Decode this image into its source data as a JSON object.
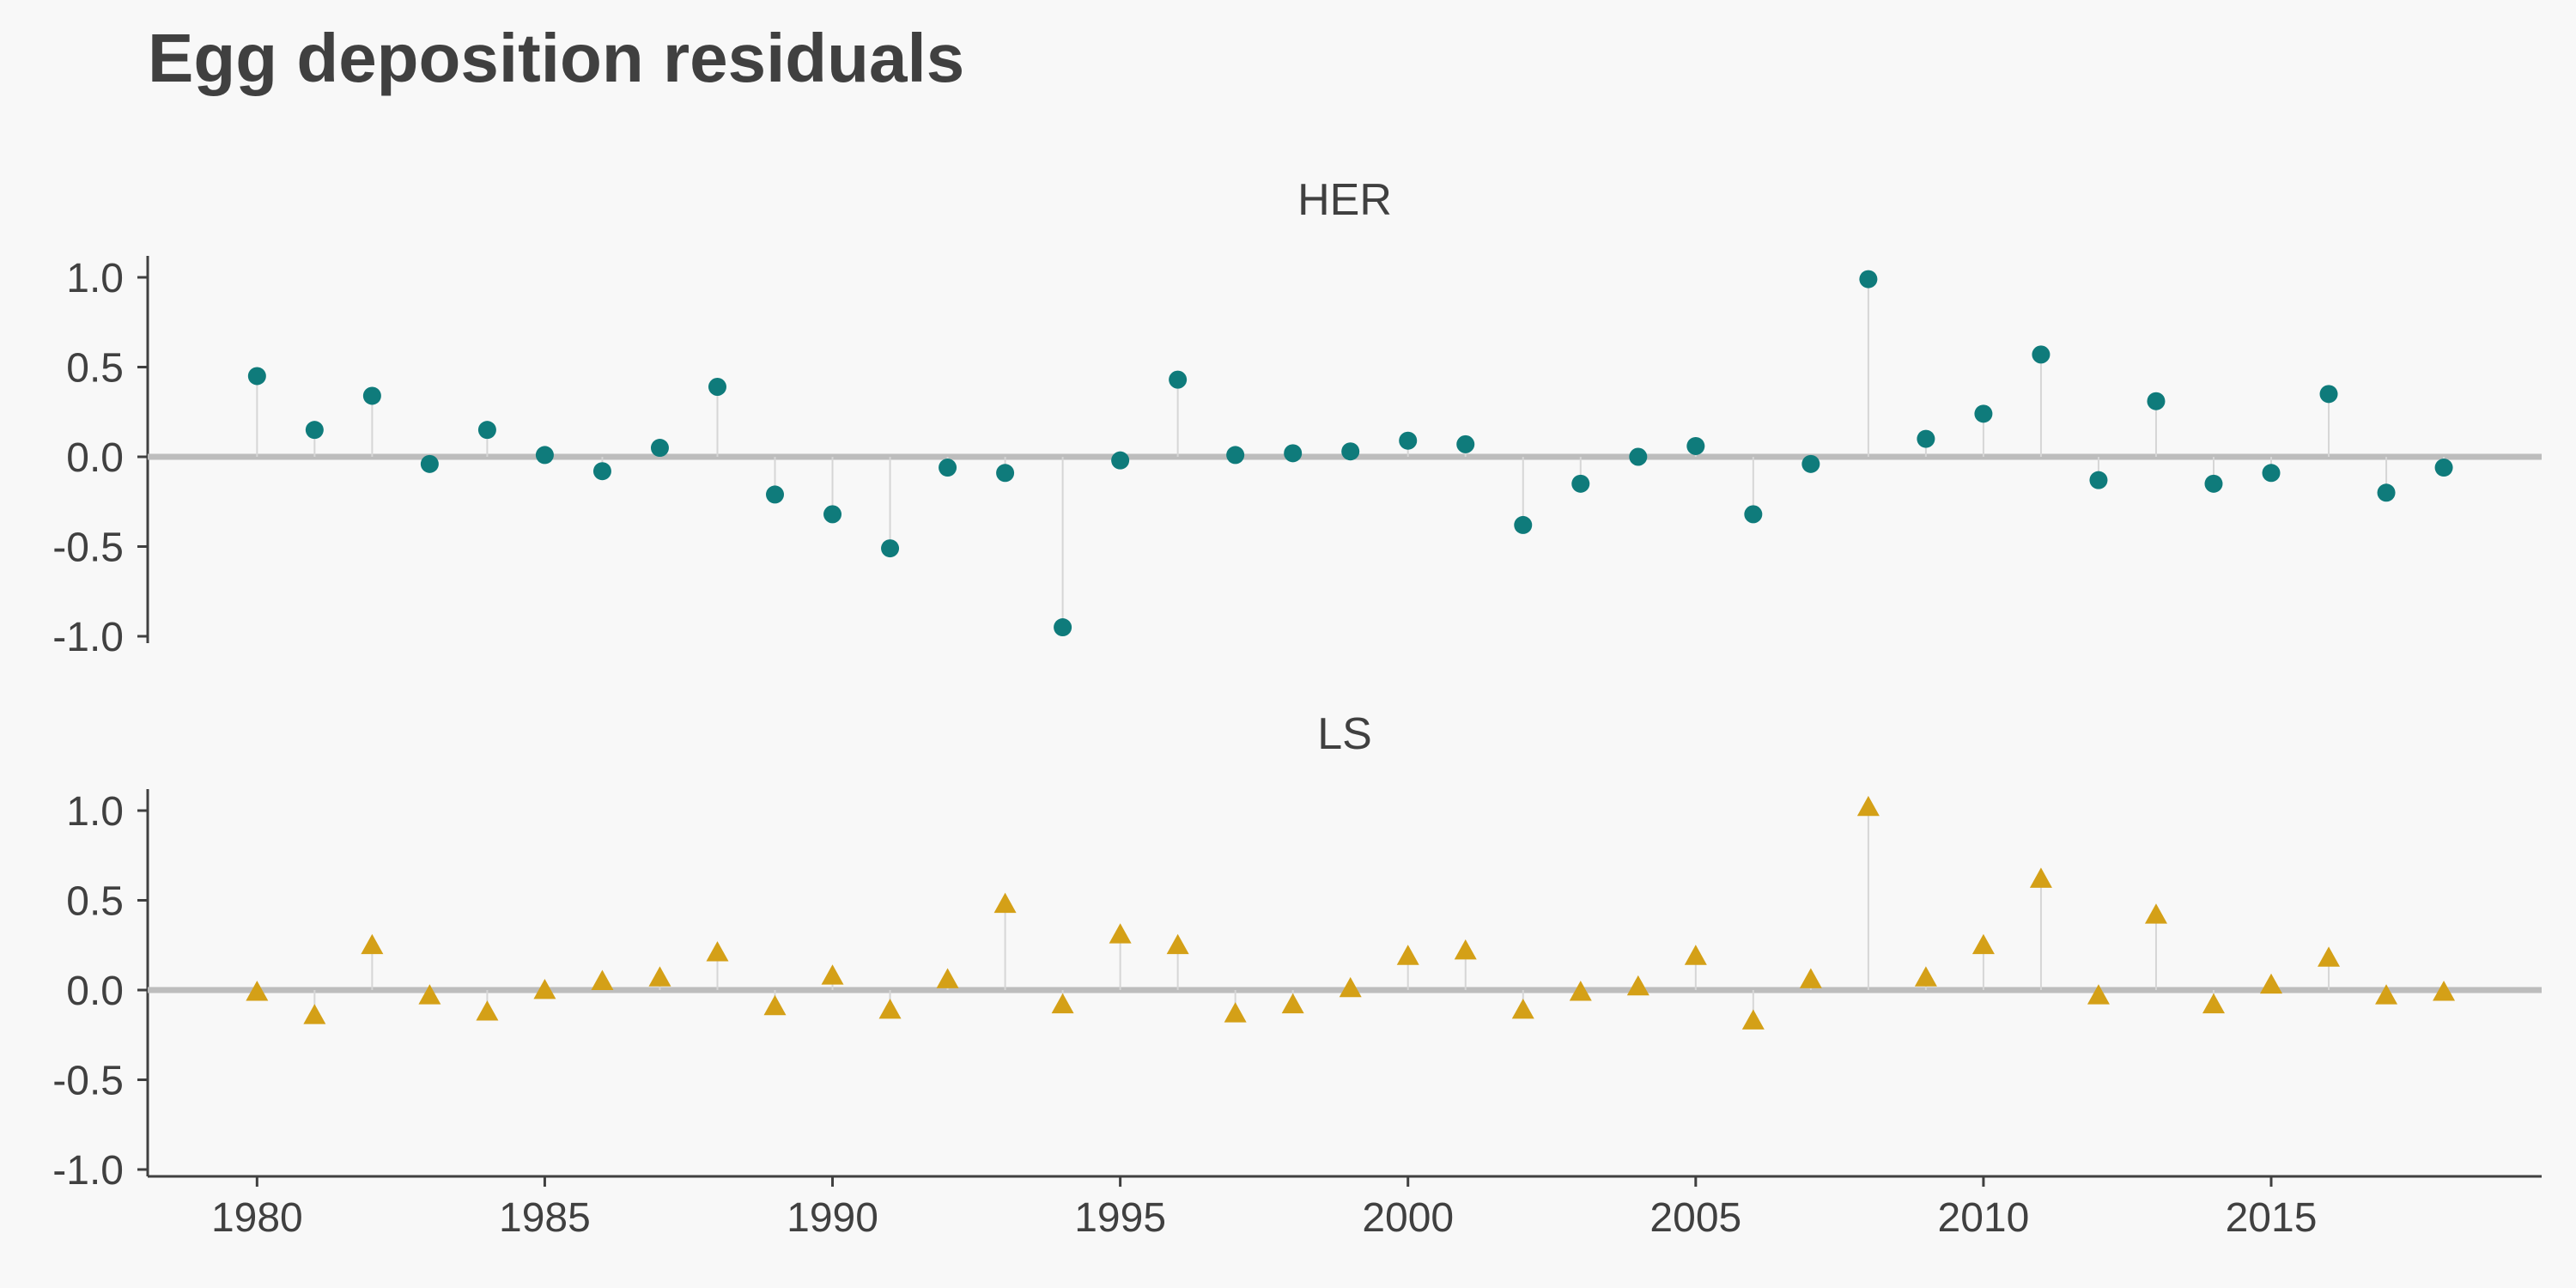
{
  "title": "Egg deposition residuals",
  "chart_data": {
    "type": "scatter",
    "title": "Egg deposition residuals",
    "xlabel": "",
    "ylabel": "",
    "xlim": [
      1978.1,
      2019.7
    ],
    "ylim": [
      -1.0,
      1.0
    ],
    "x_ticks": [
      1980,
      1985,
      1990,
      1995,
      2000,
      2005,
      2010,
      2015
    ],
    "y_ticks": [
      1.0,
      0.5,
      0.0,
      -0.5,
      -1.0
    ],
    "y_tick_labels": [
      "1.0",
      "0.5",
      "0.0",
      "-0.5",
      "-1.0"
    ],
    "grid": false,
    "zero_line": true,
    "colors": {
      "HER": "#0f7b7b",
      "LS": "#d4a017",
      "zero_line": "#bdbdbd",
      "stem": "#d6d6d6",
      "axis": "#404040"
    },
    "x": [
      1980,
      1981,
      1982,
      1983,
      1984,
      1985,
      1986,
      1987,
      1988,
      1989,
      1990,
      1991,
      1992,
      1993,
      1994,
      1995,
      1996,
      1997,
      1998,
      1999,
      2000,
      2001,
      2002,
      2003,
      2004,
      2005,
      2006,
      2007,
      2008,
      2009,
      2010,
      2011,
      2012,
      2013,
      2014,
      2015,
      2016,
      2017,
      2018
    ],
    "panels": [
      {
        "name": "HER",
        "marker": "circle",
        "values": [
          0.45,
          0.15,
          0.34,
          -0.04,
          0.15,
          0.01,
          -0.08,
          0.05,
          0.39,
          -0.21,
          -0.32,
          -0.51,
          -0.06,
          -0.09,
          -0.95,
          -0.02,
          0.43,
          0.01,
          0.02,
          0.03,
          0.09,
          0.07,
          -0.38,
          -0.15,
          0.0,
          0.06,
          -0.32,
          -0.04,
          0.99,
          0.1,
          0.24,
          0.57,
          -0.13,
          0.31,
          -0.15,
          -0.09,
          0.35,
          -0.2,
          -0.06
        ]
      },
      {
        "name": "LS",
        "marker": "triangle",
        "values": [
          -0.01,
          -0.14,
          0.25,
          -0.03,
          -0.12,
          0.0,
          0.05,
          0.07,
          0.21,
          -0.09,
          0.08,
          -0.11,
          0.06,
          0.48,
          -0.08,
          0.31,
          0.25,
          -0.13,
          -0.08,
          0.01,
          0.19,
          0.22,
          -0.11,
          -0.01,
          0.02,
          0.19,
          -0.17,
          0.06,
          1.02,
          0.07,
          0.25,
          0.62,
          -0.03,
          0.42,
          -0.08,
          0.03,
          0.18,
          -0.03,
          -0.01
        ]
      }
    ]
  }
}
